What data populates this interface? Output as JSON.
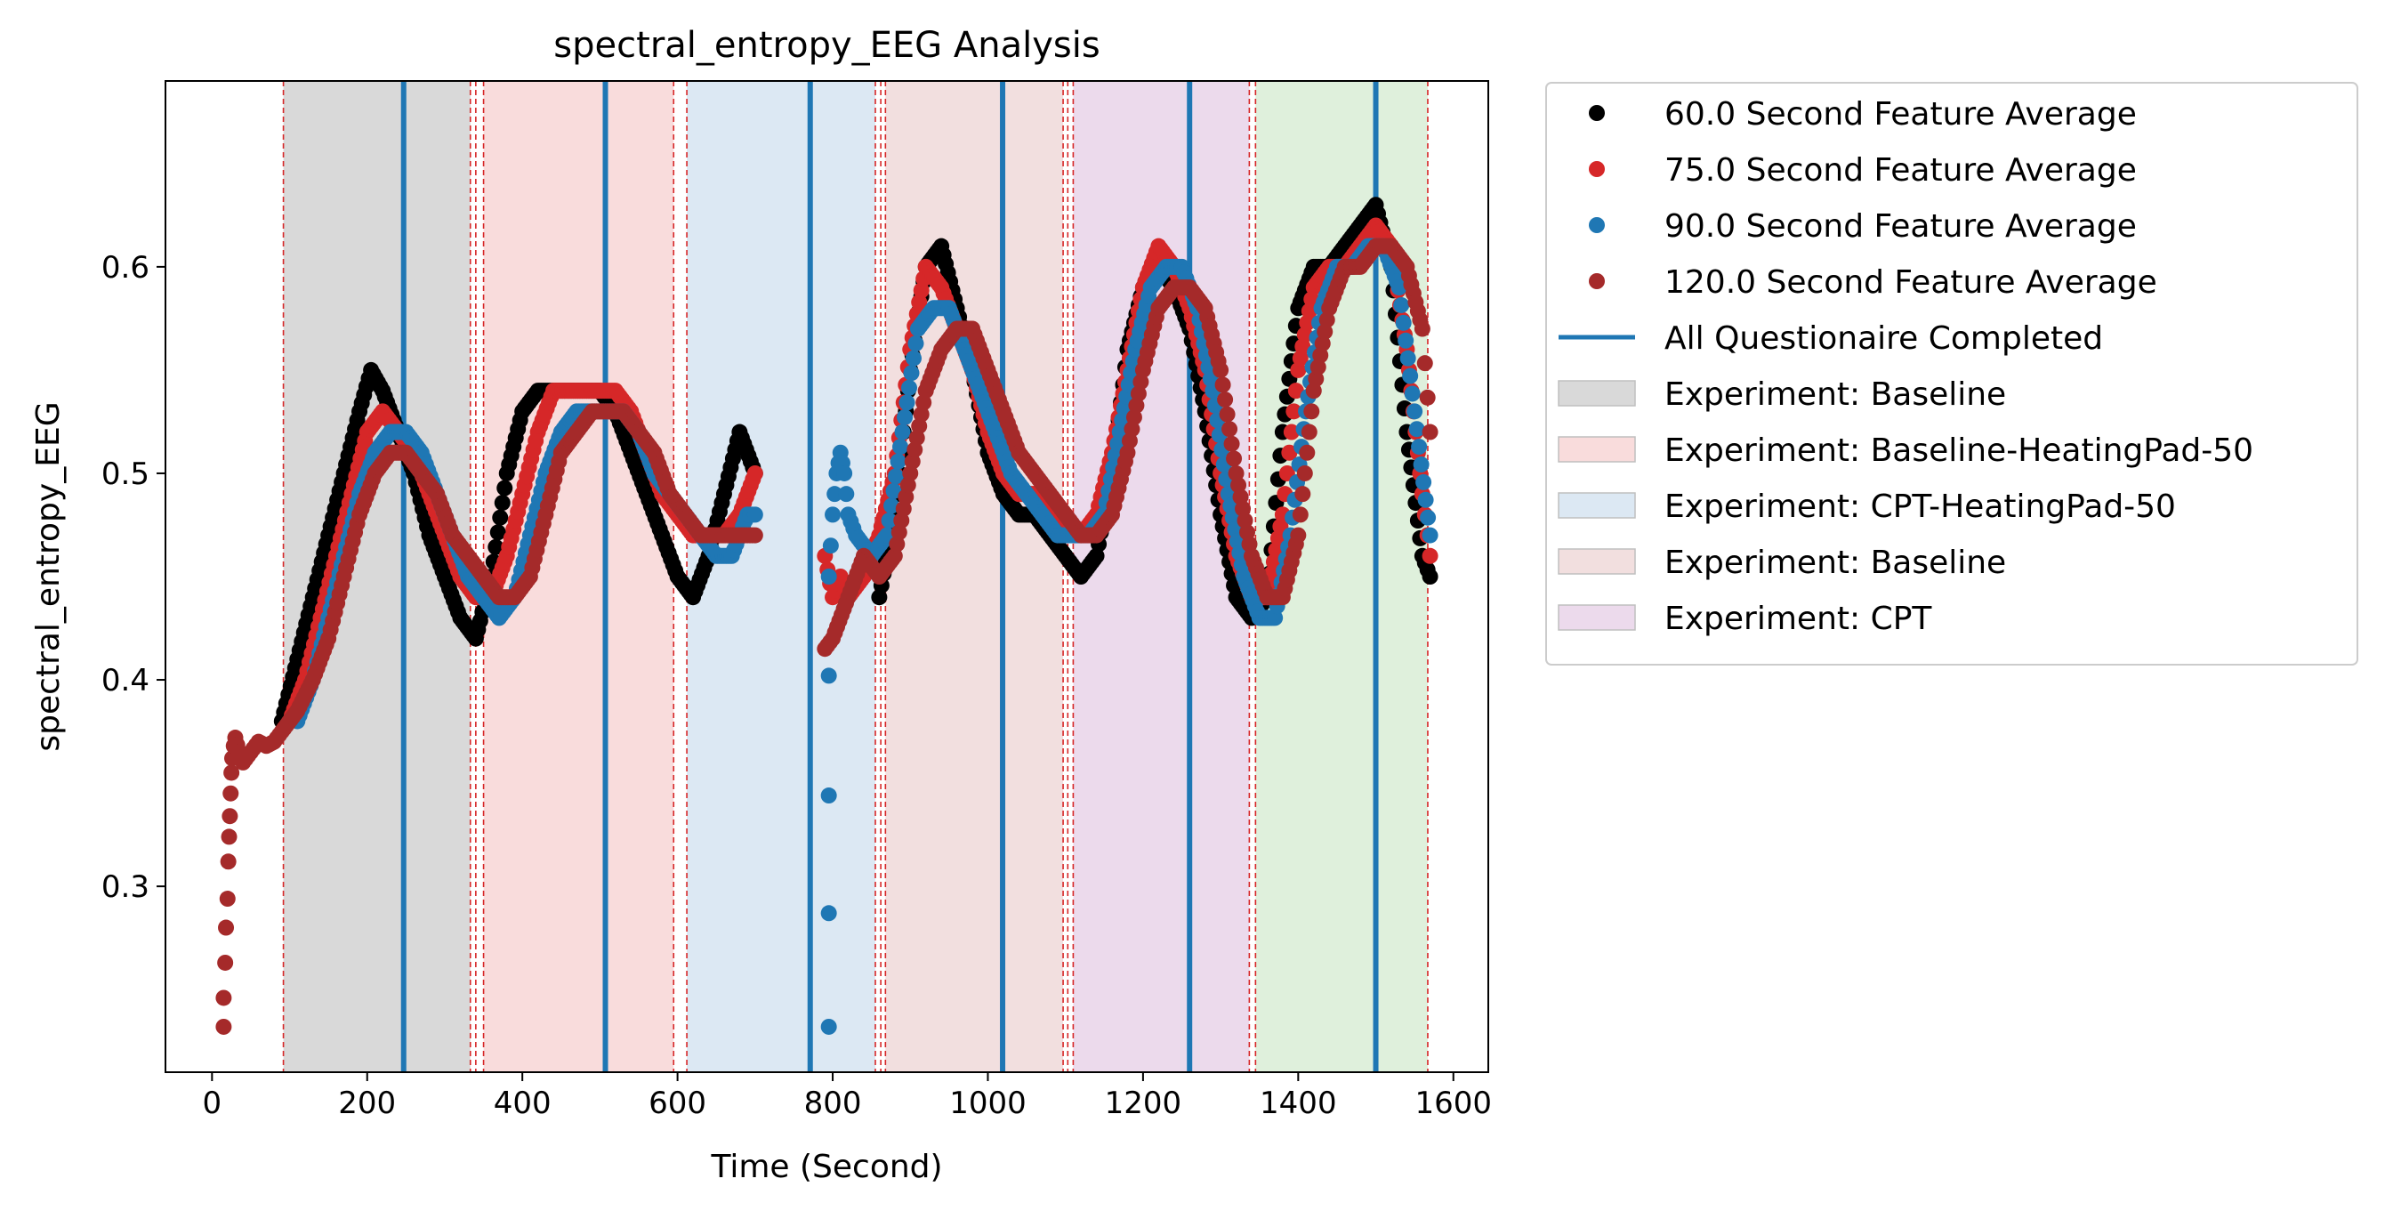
{
  "chart_data": {
    "type": "scatter",
    "title": "spectral_entropy_EEG Analysis",
    "xlabel": "Time (Second)",
    "ylabel": "spectral_entropy_EEG",
    "xlim": [
      -60,
      1645
    ],
    "ylim": [
      0.21,
      0.69
    ],
    "xticks": [
      0,
      200,
      400,
      600,
      800,
      1000,
      1200,
      1400,
      1600
    ],
    "yticks": [
      0.3,
      0.4,
      0.5,
      0.6
    ],
    "xtick_labels": [
      "0",
      "200",
      "400",
      "600",
      "800",
      "1000",
      "1200",
      "1400",
      "1600"
    ],
    "ytick_labels": [
      "0.3",
      "0.4",
      "0.5",
      "0.6"
    ],
    "grid": false,
    "legend_position": "outside-right-top",
    "series": [
      {
        "name": "60.0 Second Feature Average",
        "color": "#000000",
        "x": [
          90,
          110,
          130,
          150,
          170,
          190,
          205,
          220,
          240,
          260,
          280,
          300,
          320,
          340,
          360,
          380,
          400,
          420,
          440,
          460,
          480,
          500,
          520,
          540,
          560,
          580,
          600,
          620,
          640,
          660,
          680,
          700,
          860,
          880,
          900,
          920,
          940,
          960,
          980,
          1000,
          1020,
          1040,
          1060,
          1080,
          1100,
          1120,
          1140,
          1160,
          1180,
          1200,
          1220,
          1240,
          1260,
          1280,
          1300,
          1320,
          1340,
          1360,
          1380,
          1400,
          1420,
          1440,
          1460,
          1480,
          1500,
          1520,
          1540,
          1560,
          1570
        ],
        "y": [
          0.38,
          0.41,
          0.44,
          0.47,
          0.5,
          0.53,
          0.55,
          0.54,
          0.52,
          0.5,
          0.47,
          0.45,
          0.43,
          0.42,
          0.45,
          0.5,
          0.53,
          0.54,
          0.54,
          0.54,
          0.54,
          0.54,
          0.53,
          0.51,
          0.49,
          0.47,
          0.45,
          0.44,
          0.46,
          0.49,
          0.52,
          0.5,
          0.44,
          0.48,
          0.55,
          0.6,
          0.61,
          0.58,
          0.55,
          0.51,
          0.49,
          0.48,
          0.48,
          0.47,
          0.46,
          0.45,
          0.46,
          0.5,
          0.56,
          0.59,
          0.6,
          0.59,
          0.57,
          0.53,
          0.48,
          0.44,
          0.43,
          0.44,
          0.52,
          0.58,
          0.6,
          0.6,
          0.61,
          0.62,
          0.63,
          0.6,
          0.52,
          0.46,
          0.45
        ]
      },
      {
        "name": "75.0 Second Feature Average",
        "color": "#d62728",
        "x": [
          100,
          120,
          140,
          160,
          180,
          200,
          220,
          240,
          260,
          280,
          300,
          320,
          340,
          360,
          380,
          400,
          420,
          440,
          460,
          480,
          500,
          520,
          540,
          560,
          580,
          600,
          620,
          640,
          660,
          680,
          700,
          790,
          800,
          810,
          820,
          840,
          860,
          880,
          900,
          920,
          940,
          960,
          980,
          1000,
          1020,
          1040,
          1060,
          1080,
          1100,
          1120,
          1140,
          1160,
          1180,
          1200,
          1220,
          1240,
          1260,
          1280,
          1300,
          1320,
          1340,
          1360,
          1380,
          1400,
          1420,
          1440,
          1460,
          1480,
          1500,
          1520,
          1540,
          1560,
          1570
        ],
        "y": [
          0.38,
          0.4,
          0.43,
          0.46,
          0.49,
          0.52,
          0.53,
          0.52,
          0.51,
          0.49,
          0.47,
          0.45,
          0.44,
          0.44,
          0.46,
          0.49,
          0.52,
          0.54,
          0.54,
          0.54,
          0.54,
          0.54,
          0.53,
          0.51,
          0.49,
          0.48,
          0.47,
          0.47,
          0.47,
          0.48,
          0.5,
          0.46,
          0.44,
          0.45,
          0.44,
          0.45,
          0.47,
          0.5,
          0.56,
          0.6,
          0.59,
          0.57,
          0.55,
          0.52,
          0.5,
          0.49,
          0.49,
          0.48,
          0.47,
          0.47,
          0.48,
          0.51,
          0.55,
          0.59,
          0.61,
          0.6,
          0.58,
          0.55,
          0.5,
          0.46,
          0.44,
          0.44,
          0.48,
          0.55,
          0.59,
          0.6,
          0.6,
          0.61,
          0.62,
          0.61,
          0.56,
          0.49,
          0.46
        ]
      },
      {
        "name": "90.0 Second Feature Average",
        "color": "#1f77b4",
        "x": [
          110,
          130,
          150,
          170,
          190,
          210,
          230,
          250,
          270,
          290,
          310,
          330,
          350,
          370,
          390,
          410,
          430,
          450,
          470,
          490,
          510,
          530,
          550,
          570,
          590,
          610,
          630,
          650,
          670,
          690,
          700,
          795,
          795,
          795,
          795,
          795,
          800,
          805,
          810,
          815,
          820,
          830,
          850,
          870,
          890,
          910,
          930,
          950,
          970,
          990,
          1010,
          1030,
          1050,
          1070,
          1090,
          1110,
          1130,
          1150,
          1170,
          1190,
          1210,
          1230,
          1250,
          1270,
          1290,
          1310,
          1330,
          1350,
          1370,
          1390,
          1410,
          1430,
          1450,
          1470,
          1490,
          1510,
          1530,
          1550,
          1570
        ],
        "y": [
          0.38,
          0.4,
          0.43,
          0.46,
          0.49,
          0.51,
          0.52,
          0.52,
          0.51,
          0.49,
          0.47,
          0.45,
          0.44,
          0.43,
          0.44,
          0.47,
          0.5,
          0.52,
          0.53,
          0.53,
          0.53,
          0.53,
          0.52,
          0.5,
          0.49,
          0.48,
          0.47,
          0.46,
          0.46,
          0.48,
          0.48,
          0.232,
          0.287,
          0.344,
          0.402,
          0.45,
          0.48,
          0.5,
          0.51,
          0.5,
          0.48,
          0.47,
          0.46,
          0.47,
          0.52,
          0.57,
          0.58,
          0.58,
          0.56,
          0.54,
          0.52,
          0.5,
          0.49,
          0.48,
          0.47,
          0.47,
          0.47,
          0.48,
          0.52,
          0.56,
          0.59,
          0.6,
          0.6,
          0.58,
          0.54,
          0.49,
          0.45,
          0.43,
          0.43,
          0.47,
          0.53,
          0.58,
          0.6,
          0.6,
          0.61,
          0.61,
          0.59,
          0.53,
          0.47
        ]
      },
      {
        "name": "120.0 Second Feature Average",
        "color": "#a52a2a",
        "x": [
          15,
          15,
          17,
          18,
          20,
          21,
          22,
          23,
          24,
          25,
          26,
          28,
          30,
          35,
          40,
          50,
          60,
          70,
          80,
          90,
          110,
          130,
          150,
          170,
          190,
          210,
          230,
          250,
          270,
          290,
          310,
          330,
          350,
          370,
          390,
          410,
          430,
          450,
          470,
          490,
          510,
          530,
          550,
          570,
          590,
          610,
          630,
          650,
          670,
          690,
          700,
          790,
          800,
          820,
          840,
          860,
          880,
          900,
          920,
          940,
          960,
          980,
          1000,
          1020,
          1040,
          1060,
          1080,
          1100,
          1120,
          1140,
          1160,
          1180,
          1200,
          1220,
          1240,
          1260,
          1280,
          1300,
          1320,
          1340,
          1360,
          1380,
          1400,
          1420,
          1440,
          1460,
          1480,
          1500,
          1520,
          1540,
          1560,
          1570
        ],
        "y": [
          0.232,
          0.246,
          0.263,
          0.28,
          0.294,
          0.312,
          0.324,
          0.334,
          0.345,
          0.355,
          0.362,
          0.368,
          0.372,
          0.365,
          0.36,
          0.365,
          0.37,
          0.368,
          0.37,
          0.375,
          0.385,
          0.4,
          0.42,
          0.45,
          0.48,
          0.5,
          0.51,
          0.51,
          0.5,
          0.49,
          0.47,
          0.46,
          0.45,
          0.44,
          0.44,
          0.45,
          0.48,
          0.51,
          0.52,
          0.53,
          0.53,
          0.53,
          0.52,
          0.51,
          0.49,
          0.48,
          0.47,
          0.47,
          0.47,
          0.47,
          0.47,
          0.415,
          0.42,
          0.44,
          0.46,
          0.45,
          0.46,
          0.5,
          0.54,
          0.56,
          0.57,
          0.57,
          0.55,
          0.53,
          0.51,
          0.5,
          0.49,
          0.48,
          0.47,
          0.47,
          0.48,
          0.51,
          0.55,
          0.58,
          0.59,
          0.59,
          0.58,
          0.55,
          0.5,
          0.46,
          0.44,
          0.44,
          0.47,
          0.54,
          0.58,
          0.6,
          0.6,
          0.61,
          0.61,
          0.6,
          0.57,
          0.52
        ]
      }
    ],
    "questionnaire_lines": {
      "name": "All Questionaire Completed",
      "color": "#1f77b4",
      "x": [
        247,
        507,
        771,
        1019,
        1260,
        1500
      ]
    },
    "experiment_spans": [
      {
        "name": "Experiment: Baseline",
        "color": "#d9d9d9",
        "start": 92,
        "end": 333,
        "in_legend": true
      },
      {
        "name": "Experiment: Baseline-HeatingPad-50",
        "color": "#f9dcdc",
        "start": 350,
        "end": 595,
        "in_legend": true
      },
      {
        "name": "Experiment: CPT-HeatingPad-50",
        "color": "#dce8f3",
        "start": 612,
        "end": 855,
        "in_legend": true
      },
      {
        "name": "Experiment: Baseline",
        "color": "#f2dfdf",
        "start": 868,
        "end": 1097,
        "in_legend": true
      },
      {
        "name": "Experiment: CPT",
        "color": "#ecdaec",
        "start": 1110,
        "end": 1337,
        "in_legend": true
      },
      {
        "name": "",
        "color": "#dff0dc",
        "start": 1345,
        "end": 1567,
        "in_legend": false
      }
    ],
    "boundary_lines": {
      "color": "#d62728",
      "x": [
        92,
        333,
        340,
        350,
        595,
        612,
        855,
        862,
        868,
        1097,
        1103,
        1110,
        1337,
        1345,
        1567
      ]
    }
  }
}
